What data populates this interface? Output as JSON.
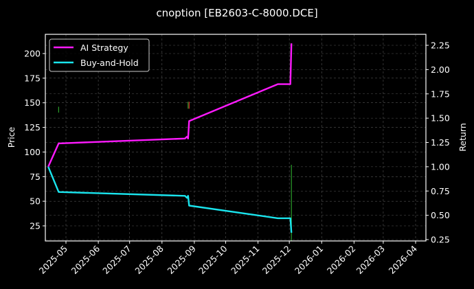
{
  "chart_data": {
    "type": "line",
    "title": "cnoption [EB2603-C-8000.DCE]",
    "xlabel": "",
    "ylabel": "Price",
    "y2label": "Return",
    "ylim": [
      10,
      220
    ],
    "y2lim": [
      0.23,
      2.35
    ],
    "grid": true,
    "legend_position": "upper left",
    "x_tick_labels": [
      "2025-05",
      "2025-06",
      "2025-07",
      "2025-08",
      "2025-09",
      "2025-10",
      "2025-11",
      "2025-12",
      "2026-01",
      "2026-02",
      "2026-03",
      "2026-04"
    ],
    "y_tick_labels": [
      "25",
      "50",
      "75",
      "100",
      "125",
      "150",
      "175",
      "200"
    ],
    "y2_tick_labels": [
      "0.25",
      "0.50",
      "0.75",
      "1.00",
      "1.25",
      "1.50",
      "1.75",
      "2.00",
      "2.25"
    ],
    "series": [
      {
        "name": "AI Strategy",
        "axis": "right",
        "color": "#ff1aff",
        "points": [
          {
            "x": "2025-04-14",
            "y": 1.0
          },
          {
            "x": "2025-04-24",
            "y": 1.24
          },
          {
            "x": "2025-08-23",
            "y": 1.29
          },
          {
            "x": "2025-08-25",
            "y": 1.31
          },
          {
            "x": "2025-08-26",
            "y": 1.29
          },
          {
            "x": "2025-08-27",
            "y": 1.47
          },
          {
            "x": "2025-11-20",
            "y": 1.85
          },
          {
            "x": "2025-12-02",
            "y": 1.85
          },
          {
            "x": "2025-12-03",
            "y": 2.27
          }
        ]
      },
      {
        "name": "Buy-and-Hold",
        "axis": "right",
        "color": "#1ae5ee",
        "points": [
          {
            "x": "2025-04-14",
            "y": 1.0
          },
          {
            "x": "2025-04-24",
            "y": 0.74
          },
          {
            "x": "2025-08-23",
            "y": 0.7
          },
          {
            "x": "2025-08-25",
            "y": 0.68
          },
          {
            "x": "2025-08-26",
            "y": 0.7
          },
          {
            "x": "2025-08-27",
            "y": 0.6
          },
          {
            "x": "2025-11-20",
            "y": 0.47
          },
          {
            "x": "2025-12-02",
            "y": 0.47
          },
          {
            "x": "2025-12-03",
            "y": 0.32
          }
        ]
      }
    ],
    "markers": [
      {
        "type": "buy",
        "color": "#2ca02c",
        "x": "2025-04-24",
        "price_from": 140,
        "price_to": 146
      },
      {
        "type": "buy",
        "color": "#2ca02c",
        "x": "2025-08-26",
        "price_from": 144,
        "price_to": 151
      },
      {
        "type": "sell",
        "color": "#d62728",
        "x": "2025-08-27",
        "price_from": 144,
        "price_to": 151
      },
      {
        "type": "buy",
        "color": "#2ca02c",
        "x": "2025-12-03",
        "price_from": 10,
        "price_to": 87
      }
    ]
  },
  "legend": {
    "items": [
      {
        "label": "AI Strategy",
        "color": "#ff1aff"
      },
      {
        "label": "Buy-and-Hold",
        "color": "#1ae5ee"
      }
    ]
  },
  "axes": {
    "left_title": "Price",
    "right_title": "Return"
  }
}
